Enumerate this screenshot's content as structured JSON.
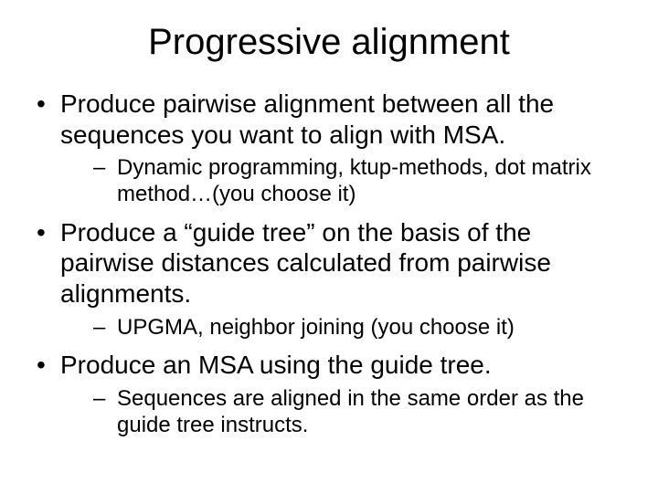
{
  "title": "Progressive alignment",
  "bullets": [
    {
      "text": "Produce pairwise alignment between all the sequences you want to align with MSA.",
      "subs": [
        "Dynamic programming, ktup-methods, dot matrix method…(you choose it)"
      ]
    },
    {
      "text": "Produce a “guide tree” on the basis of the pairwise distances calculated from pairwise alignments.",
      "subs": [
        "UPGMA, neighbor joining (you choose it)"
      ]
    },
    {
      "text": "Produce an MSA using the guide tree.",
      "subs": [
        "Sequences are aligned in the same order as the guide tree instructs."
      ]
    }
  ],
  "style": {
    "background_color": "#ffffff",
    "text_color": "#000000",
    "title_fontsize": 40,
    "l1_fontsize": 28,
    "l2_fontsize": 24,
    "font_family": "Arial"
  }
}
